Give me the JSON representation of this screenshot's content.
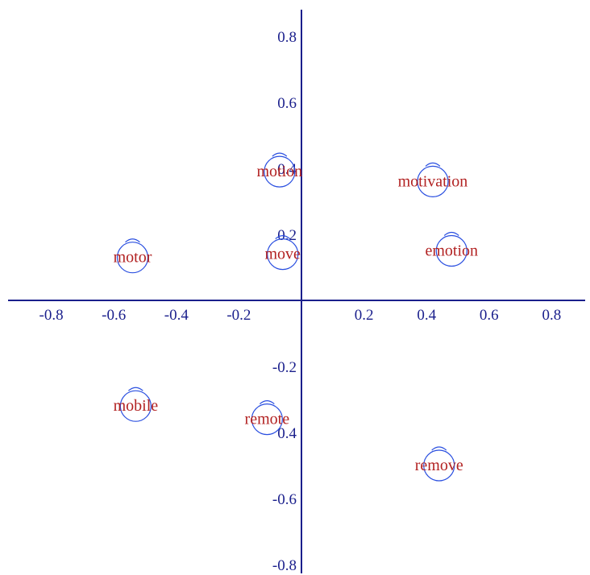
{
  "chart_data": {
    "type": "scatter",
    "title": "",
    "xlabel": "",
    "ylabel": "",
    "xlim": [
      -0.95,
      0.95
    ],
    "ylim": [
      -0.85,
      0.9
    ],
    "x_ticks": [
      -0.8,
      -0.6,
      -0.4,
      -0.2,
      0.2,
      0.4,
      0.6,
      0.8
    ],
    "y_ticks": [
      0.8,
      0.6,
      0.2,
      -0.2,
      -0.6,
      -0.8
    ],
    "x_tick_labels": [
      "-0.8",
      "-0.6",
      "-0.4",
      "-0.2",
      "0.2",
      "0.4",
      "0.6",
      "0.8"
    ],
    "y_tick_labels": [
      "0.8",
      "0.6",
      "0.2",
      "-0.2",
      "-0.6",
      "-0.8"
    ],
    "extra_tick_labels": [
      "0.4",
      "0.4"
    ],
    "grid": false,
    "points": [
      {
        "label": "motion",
        "x": -0.07,
        "y": 0.39
      },
      {
        "label": "motivation",
        "x": 0.42,
        "y": 0.36
      },
      {
        "label": "motor",
        "x": -0.54,
        "y": 0.13
      },
      {
        "label": "move",
        "x": -0.06,
        "y": 0.14
      },
      {
        "label": "emotion",
        "x": 0.48,
        "y": 0.15
      },
      {
        "label": "mobile",
        "x": -0.53,
        "y": -0.32
      },
      {
        "label": "remote",
        "x": -0.11,
        "y": -0.36
      },
      {
        "label": "remove",
        "x": 0.44,
        "y": -0.5
      }
    ],
    "colors": {
      "axis": "#1a1f8c",
      "label": "#b22222",
      "marker": "#2a4fe0"
    }
  }
}
